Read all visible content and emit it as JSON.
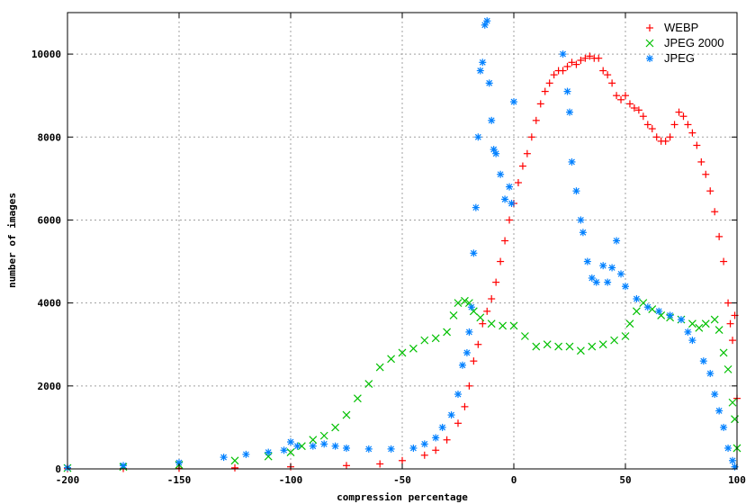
{
  "chart_data": {
    "type": "scatter",
    "title": "",
    "xlabel": "compression percentage",
    "ylabel": "number of images",
    "xlim": [
      -200,
      100
    ],
    "ylim": [
      0,
      11000
    ],
    "xticks": [
      -200,
      -150,
      -100,
      -50,
      0,
      50,
      100
    ],
    "yticks": [
      0,
      2000,
      4000,
      6000,
      8000,
      10000
    ],
    "grid": true,
    "legend_position": "top-right",
    "series": [
      {
        "name": "WEBP",
        "color": "#ff0000",
        "marker": "plus",
        "x": [
          -200,
          -175,
          -150,
          -125,
          -100,
          -75,
          -60,
          -50,
          -40,
          -35,
          -30,
          -25,
          -22,
          -20,
          -18,
          -16,
          -14,
          -12,
          -10,
          -8,
          -6,
          -4,
          -2,
          0,
          2,
          4,
          6,
          8,
          10,
          12,
          14,
          16,
          18,
          20,
          22,
          24,
          26,
          28,
          30,
          32,
          34,
          36,
          38,
          40,
          42,
          44,
          46,
          48,
          50,
          52,
          54,
          56,
          58,
          60,
          62,
          64,
          66,
          68,
          70,
          72,
          74,
          76,
          78,
          80,
          82,
          84,
          86,
          88,
          90,
          92,
          94,
          96,
          97,
          98,
          99,
          100
        ],
        "y": [
          5,
          10,
          15,
          25,
          50,
          80,
          120,
          200,
          330,
          450,
          700,
          1100,
          1500,
          2000,
          2600,
          3000,
          3500,
          3800,
          4100,
          4500,
          5000,
          5500,
          6000,
          6400,
          6900,
          7300,
          7600,
          8000,
          8400,
          8800,
          9100,
          9300,
          9500,
          9600,
          9600,
          9700,
          9800,
          9750,
          9850,
          9900,
          9950,
          9900,
          9900,
          9600,
          9500,
          9300,
          9000,
          8900,
          9000,
          8800,
          8700,
          8650,
          8500,
          8300,
          8200,
          8000,
          7900,
          7900,
          8000,
          8300,
          8600,
          8500,
          8300,
          8100,
          7800,
          7400,
          7100,
          6700,
          6200,
          5600,
          5000,
          4000,
          3500,
          3100,
          3700,
          1700
        ]
      },
      {
        "name": "JPEG 2000",
        "color": "#00c000",
        "marker": "cross",
        "x": [
          -200,
          -175,
          -150,
          -125,
          -110,
          -100,
          -95,
          -90,
          -85,
          -80,
          -75,
          -70,
          -65,
          -60,
          -55,
          -50,
          -45,
          -40,
          -35,
          -30,
          -27,
          -25,
          -22,
          -20,
          -18,
          -15,
          -10,
          -5,
          0,
          5,
          10,
          15,
          20,
          25,
          30,
          35,
          40,
          45,
          50,
          52,
          55,
          58,
          62,
          66,
          70,
          75,
          80,
          83,
          86,
          90,
          92,
          94,
          96,
          98,
          99,
          100
        ],
        "y": [
          20,
          50,
          100,
          200,
          300,
          400,
          550,
          700,
          800,
          1000,
          1300,
          1700,
          2050,
          2450,
          2650,
          2800,
          2900,
          3100,
          3150,
          3300,
          3700,
          4000,
          4050,
          4000,
          3800,
          3650,
          3500,
          3450,
          3450,
          3200,
          2950,
          3000,
          2950,
          2950,
          2850,
          2950,
          3000,
          3100,
          3200,
          3500,
          3800,
          4000,
          3850,
          3700,
          3650,
          3600,
          3500,
          3400,
          3500,
          3600,
          3350,
          2800,
          2400,
          1600,
          1200,
          500
        ]
      },
      {
        "name": "JPEG",
        "color": "#0080ff",
        "marker": "star",
        "x": [
          -200,
          -175,
          -150,
          -130,
          -120,
          -110,
          -103,
          -100,
          -97,
          -90,
          -85,
          -80,
          -75,
          -65,
          -55,
          -45,
          -40,
          -35,
          -32,
          -28,
          -25,
          -23,
          -21,
          -20,
          -19,
          -18,
          -17,
          -16,
          -15,
          -14,
          -13,
          -12,
          -11,
          -10,
          -9,
          -8,
          -6,
          -4,
          -2,
          -1,
          0,
          22,
          24,
          25,
          26,
          28,
          30,
          31,
          33,
          35,
          37,
          40,
          42,
          44,
          46,
          48,
          50,
          55,
          60,
          65,
          70,
          75,
          78,
          80,
          85,
          88,
          90,
          92,
          94,
          96,
          98,
          99
        ],
        "y": [
          30,
          80,
          150,
          280,
          350,
          400,
          450,
          650,
          550,
          550,
          600,
          550,
          500,
          480,
          480,
          500,
          600,
          750,
          1000,
          1300,
          1800,
          2500,
          2800,
          3300,
          3900,
          5200,
          6300,
          8000,
          9600,
          9800,
          10700,
          10800,
          9300,
          8400,
          7700,
          7600,
          7100,
          6500,
          6800,
          6400,
          8850,
          10000,
          9100,
          8600,
          7400,
          6700,
          6000,
          5700,
          5000,
          4600,
          4500,
          4900,
          4500,
          4850,
          5500,
          4700,
          4400,
          4100,
          3900,
          3800,
          3700,
          3600,
          3300,
          3100,
          2600,
          2300,
          1800,
          1400,
          1000,
          500,
          200,
          50
        ]
      }
    ]
  }
}
